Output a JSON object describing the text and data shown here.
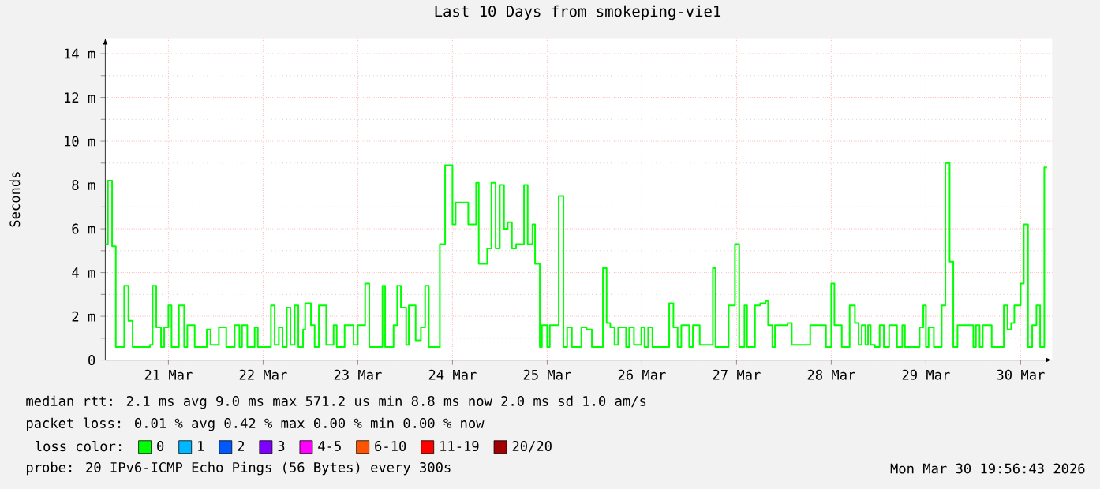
{
  "chart_data": {
    "type": "step",
    "title": "Last 10 Days from smokeping-vie1",
    "ylabel": "Seconds",
    "legend_title": "loss color:",
    "xlim": [
      "2026-03-20T20:00",
      "2026-03-30T20:00"
    ],
    "xticks": [
      {
        "value": "2026-03-21T12:00",
        "label": "21 Mar"
      },
      {
        "value": "2026-03-22T12:00",
        "label": "22 Mar"
      },
      {
        "value": "2026-03-23T12:00",
        "label": "23 Mar"
      },
      {
        "value": "2026-03-24T12:00",
        "label": "24 Mar"
      },
      {
        "value": "2026-03-25T12:00",
        "label": "25 Mar"
      },
      {
        "value": "2026-03-26T12:00",
        "label": "26 Mar"
      },
      {
        "value": "2026-03-27T12:00",
        "label": "27 Mar"
      },
      {
        "value": "2026-03-28T12:00",
        "label": "28 Mar"
      },
      {
        "value": "2026-03-29T12:00",
        "label": "29 Mar"
      },
      {
        "value": "2026-03-30T12:00",
        "label": "30 Mar"
      }
    ],
    "ylim": [
      0,
      14.7
    ],
    "yticks": [
      0,
      {
        "value": 2,
        "label": "2 m"
      },
      {
        "value": 4,
        "label": "4 m"
      },
      {
        "value": 6,
        "label": "6 m"
      },
      {
        "value": 8,
        "label": "8 m"
      },
      {
        "value": 10,
        "label": "10 m"
      },
      {
        "value": 12,
        "label": "12 m"
      },
      {
        "value": 14,
        "label": "14 m"
      }
    ],
    "grid": true,
    "legend": "bottom",
    "series": [
      {
        "name": "0",
        "color": "#00ff00",
        "x": [
          "2026-03-20T20:00",
          "2026-03-20T20:40",
          "2026-03-20T21:44",
          "2026-03-20T22:40",
          "2026-03-21T00:48",
          "2026-03-21T01:52",
          "2026-03-21T02:56",
          "2026-03-21T07:20",
          "2026-03-21T08:00",
          "2026-03-21T08:56",
          "2026-03-21T10:08",
          "2026-03-21T10:56",
          "2026-03-21T12:00",
          "2026-03-21T12:48",
          "2026-03-21T14:40",
          "2026-03-21T16:00",
          "2026-03-21T16:48",
          "2026-03-21T18:40",
          "2026-03-21T21:44",
          "2026-03-21T22:40",
          "2026-03-22T00:48",
          "2026-03-22T02:40",
          "2026-03-22T04:48",
          "2026-03-22T06:00",
          "2026-03-22T06:40",
          "2026-03-22T08:00",
          "2026-03-22T09:52",
          "2026-03-22T10:40",
          "2026-03-22T14:00",
          "2026-03-22T14:56",
          "2026-03-22T16:00",
          "2026-03-22T16:56",
          "2026-03-22T18:00",
          "2026-03-22T18:56",
          "2026-03-22T20:00",
          "2026-03-22T20:56",
          "2026-03-22T22:08",
          "2026-03-22T22:40",
          "2026-03-23T00:08",
          "2026-03-23T01:04",
          "2026-03-23T02:08",
          "2026-03-23T04:00",
          "2026-03-23T05:52",
          "2026-03-23T06:40",
          "2026-03-23T08:40",
          "2026-03-23T10:56",
          "2026-03-23T12:00",
          "2026-03-23T13:52",
          "2026-03-23T14:56",
          "2026-03-23T18:16",
          "2026-03-23T18:56",
          "2026-03-23T21:04",
          "2026-03-23T22:00",
          "2026-03-23T22:56",
          "2026-03-24T00:16",
          "2026-03-24T00:56",
          "2026-03-24T02:40",
          "2026-03-24T04:00",
          "2026-03-24T05:04",
          "2026-03-24T06:00",
          "2026-03-24T08:48",
          "2026-03-24T10:08",
          "2026-03-24T12:00",
          "2026-03-24T12:48",
          "2026-03-24T16:00",
          "2026-03-24T18:00",
          "2026-03-24T18:40",
          "2026-03-24T20:48",
          "2026-03-24T21:52",
          "2026-03-24T22:56",
          "2026-03-25T00:00",
          "2026-03-25T01:04",
          "2026-03-25T02:00",
          "2026-03-25T03:04",
          "2026-03-25T04:08",
          "2026-03-25T06:08",
          "2026-03-25T07:04",
          "2026-03-25T08:16",
          "2026-03-25T08:56",
          "2026-03-25T10:08",
          "2026-03-25T10:40",
          "2026-03-25T12:00",
          "2026-03-25T12:40",
          "2026-03-25T14:56",
          "2026-03-25T16:08",
          "2026-03-25T17:04",
          "2026-03-25T18:16",
          "2026-03-25T20:40",
          "2026-03-25T22:00",
          "2026-03-25T23:20",
          "2026-03-26T02:08",
          "2026-03-26T03:04",
          "2026-03-26T04:00",
          "2026-03-26T05:04",
          "2026-03-26T06:00",
          "2026-03-26T08:00",
          "2026-03-26T08:48",
          "2026-03-26T10:00",
          "2026-03-26T11:52",
          "2026-03-26T12:40",
          "2026-03-26T13:36",
          "2026-03-26T14:40",
          "2026-03-26T18:56",
          "2026-03-26T20:00",
          "2026-03-26T21:04",
          "2026-03-26T22:00",
          "2026-03-27T00:00",
          "2026-03-27T00:56",
          "2026-03-27T02:40",
          "2026-03-27T06:00",
          "2026-03-27T06:40",
          "2026-03-27T10:00",
          "2026-03-27T11:36",
          "2026-03-27T12:40",
          "2026-03-27T14:00",
          "2026-03-27T14:40",
          "2026-03-27T16:40",
          "2026-03-27T18:00",
          "2026-03-27T19:20",
          "2026-03-27T20:00",
          "2026-03-27T21:04",
          "2026-03-27T21:44",
          "2026-03-28T00:56",
          "2026-03-28T02:00",
          "2026-03-28T06:40",
          "2026-03-28T10:40",
          "2026-03-28T12:00",
          "2026-03-28T12:48",
          "2026-03-28T14:40",
          "2026-03-28T16:40",
          "2026-03-28T18:00",
          "2026-03-28T18:56",
          "2026-03-28T19:44",
          "2026-03-28T20:40",
          "2026-03-28T21:20",
          "2026-03-28T22:00",
          "2026-03-28T23:04",
          "2026-03-29T00:16",
          "2026-03-29T01:20",
          "2026-03-29T02:40",
          "2026-03-29T04:40",
          "2026-03-29T06:00",
          "2026-03-29T06:40",
          "2026-03-29T10:24",
          "2026-03-29T11:20",
          "2026-03-29T12:00",
          "2026-03-29T12:40",
          "2026-03-29T14:00",
          "2026-03-29T16:00",
          "2026-03-29T16:56",
          "2026-03-29T18:00",
          "2026-03-29T18:56",
          "2026-03-29T20:00",
          "2026-03-30T00:00",
          "2026-03-30T00:40",
          "2026-03-30T01:36",
          "2026-03-30T02:24",
          "2026-03-30T04:40",
          "2026-03-30T07:44",
          "2026-03-30T08:40",
          "2026-03-30T09:36",
          "2026-03-30T10:24",
          "2026-03-30T12:00",
          "2026-03-30T12:48",
          "2026-03-30T13:52",
          "2026-03-30T14:56",
          "2026-03-30T16:00",
          "2026-03-30T16:56",
          "2026-03-30T18:00",
          "2026-03-30T18:40"
        ],
        "values": [
          5.3,
          8.2,
          5.2,
          0.6,
          3.4,
          1.8,
          0.6,
          0.7,
          3.4,
          1.5,
          0.6,
          1.5,
          2.5,
          0.6,
          2.5,
          0.6,
          1.6,
          0.6,
          1.4,
          0.7,
          1.5,
          0.6,
          1.6,
          0.6,
          1.6,
          0.6,
          1.5,
          0.6,
          2.5,
          0.7,
          1.5,
          0.6,
          2.4,
          0.7,
          2.5,
          0.6,
          1.4,
          2.6,
          1.6,
          0.6,
          2.5,
          0.7,
          1.6,
          0.6,
          1.6,
          0.7,
          1.6,
          3.5,
          0.6,
          3.4,
          0.6,
          1.6,
          3.4,
          2.4,
          0.7,
          2.5,
          0.9,
          1.5,
          3.4,
          0.6,
          5.3,
          8.9,
          6.2,
          7.2,
          6.2,
          8.1,
          4.4,
          5.1,
          8.1,
          5.1,
          8.0,
          6.0,
          6.3,
          5.1,
          5.3,
          8.0,
          5.3,
          6.2,
          4.4,
          0.6,
          1.6,
          0.6,
          1.6,
          7.5,
          0.6,
          1.5,
          0.6,
          1.5,
          1.4,
          0.6,
          4.2,
          1.7,
          1.5,
          0.7,
          1.5,
          0.6,
          1.5,
          0.7,
          1.5,
          0.6,
          1.5,
          0.6,
          2.6,
          1.5,
          0.6,
          1.6,
          0.6,
          1.6,
          0.7,
          4.2,
          0.6,
          2.5,
          5.3,
          0.6,
          2.5,
          0.6,
          2.5,
          2.6,
          2.7,
          1.6,
          0.6,
          1.6,
          1.7,
          0.7,
          1.6,
          0.6,
          3.5,
          1.6,
          0.6,
          2.5,
          1.7,
          0.7,
          1.6,
          0.7,
          1.6,
          0.7,
          0.6,
          1.6,
          0.6,
          1.6,
          0.6,
          1.6,
          0.6,
          1.5,
          2.5,
          0.6,
          1.5,
          0.6,
          2.5,
          9.0,
          4.5,
          0.6,
          1.6,
          0.6,
          1.6,
          0.6,
          1.6,
          0.6,
          2.5,
          1.4,
          1.7,
          2.5,
          3.5,
          6.2,
          0.6,
          1.6,
          2.5,
          0.6,
          8.8,
          8.8
        ]
      },
      {
        "name": "1",
        "color": "#00b8ff",
        "values": [
          null
        ]
      },
      {
        "name": "2",
        "color": "#0059ff",
        "values": [
          null
        ]
      },
      {
        "name": "3",
        "color": "#7e00ff",
        "values": [
          null
        ]
      },
      {
        "name": "4-5",
        "color": "#ff00ff",
        "values": [
          null
        ]
      },
      {
        "name": "6-10",
        "color": "#ff5500",
        "values": [
          null
        ]
      },
      {
        "name": "11-19",
        "color": "#ff0000",
        "values": [
          null
        ]
      },
      {
        "name": "20/20",
        "color": "#a10000",
        "values": [
          null
        ]
      }
    ],
    "annotations": [
      "median rtt: 2.1 ms avg 9.0 ms max 571.2 us min 8.8 ms now 2.0 ms sd 1.0 am/s",
      "packet loss: 0.01 % avg 0.42 % max 0.00 % min 0.00 % now",
      "probe: 20 IPv6-ICMP Echo Pings (56 Bytes) every 300s",
      "Mon Mar 30 19:56:43 2026"
    ]
  }
}
